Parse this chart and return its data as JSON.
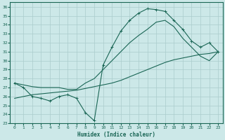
{
  "xlabel": "Humidex (Indice chaleur)",
  "background_color": "#cce8e8",
  "grid_color": "#aacccc",
  "line_color": "#1a6655",
  "xlim": [
    -0.5,
    23.5
  ],
  "ylim": [
    23,
    36.5
  ],
  "xticks": [
    0,
    1,
    2,
    3,
    4,
    5,
    6,
    7,
    8,
    9,
    10,
    11,
    12,
    13,
    14,
    15,
    16,
    17,
    18,
    19,
    20,
    21,
    22,
    23
  ],
  "yticks": [
    23,
    24,
    25,
    26,
    27,
    28,
    29,
    30,
    31,
    32,
    33,
    34,
    35,
    36
  ],
  "main_y": [
    27.5,
    27.0,
    26.0,
    25.8,
    25.5,
    26.0,
    26.2,
    25.8,
    24.2,
    23.3,
    29.5,
    31.5,
    33.3,
    34.5,
    35.3,
    35.8,
    35.7,
    35.5,
    34.5,
    33.5,
    32.2,
    31.5,
    32.0,
    31.0
  ],
  "line1_y": [
    27.5,
    27.3,
    27.1,
    27.0,
    27.0,
    27.0,
    26.8,
    26.8,
    27.5,
    28.0,
    29.0,
    30.0,
    31.0,
    32.0,
    32.8,
    33.5,
    34.3,
    34.5,
    33.8,
    32.5,
    31.5,
    30.5,
    30.0,
    31.0
  ],
  "line2_y": [
    25.8,
    26.0,
    26.2,
    26.3,
    26.4,
    26.5,
    26.6,
    26.7,
    26.9,
    27.1,
    27.3,
    27.5,
    27.8,
    28.2,
    28.6,
    29.0,
    29.4,
    29.8,
    30.1,
    30.3,
    30.5,
    30.7,
    30.8,
    31.0
  ]
}
